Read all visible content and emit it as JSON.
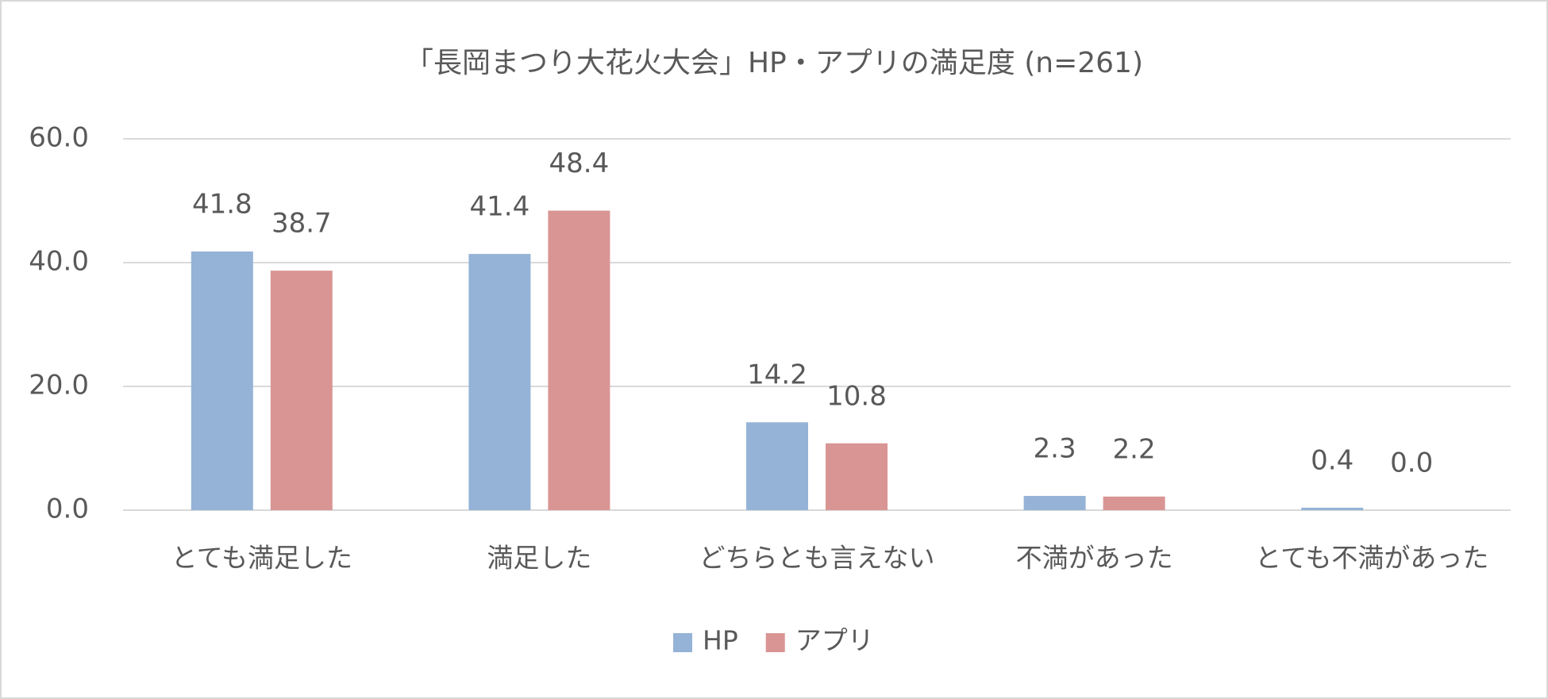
{
  "chart_data": {
    "type": "bar",
    "title": "「長岡まつり大花火大会」HP・アプリの満足度 (n=261)",
    "categories": [
      "とても満足した",
      "満足した",
      "どちらとも言えない",
      "不満があった",
      "とても不満があった"
    ],
    "series": [
      {
        "name": "HP",
        "color": "#95b3d7",
        "values": [
          41.8,
          41.4,
          14.2,
          2.3,
          0.4
        ],
        "value_labels": [
          "41.8",
          "41.4",
          "14.2",
          "2.3",
          "0.4"
        ]
      },
      {
        "name": "アプリ",
        "color": "#d99594",
        "values": [
          38.7,
          48.4,
          10.8,
          2.2,
          0
        ],
        "value_labels": [
          "38.7",
          "48.4",
          "10.8",
          "2.2",
          "0.0"
        ]
      }
    ],
    "ylim": [
      0,
      60
    ],
    "yticks": [
      {
        "value": 0,
        "label": "0.0"
      },
      {
        "value": 20,
        "label": "20.0"
      },
      {
        "value": 40,
        "label": "40.0"
      },
      {
        "value": 60,
        "label": "60.0"
      }
    ],
    "grid": true,
    "legend": "bottom"
  }
}
